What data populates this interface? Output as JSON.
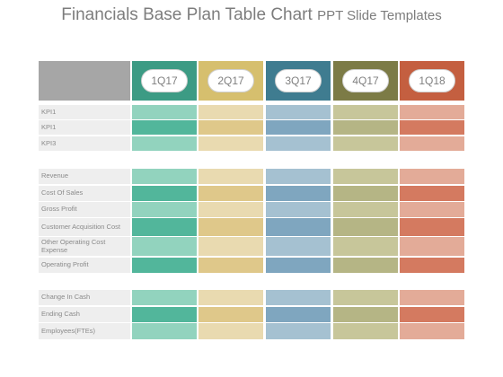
{
  "title": {
    "main": "Financials Base Plan Table Chart",
    "sub": "PPT Slide Templates"
  },
  "columns": [
    {
      "label": "1Q17",
      "header": "#3c9b84",
      "dark": "#52b69b",
      "light": "#92d3be"
    },
    {
      "label": "2Q17",
      "header": "#d6bf6e",
      "dark": "#dfc88a",
      "light": "#e9dab0"
    },
    {
      "label": "3Q17",
      "header": "#3f7c90",
      "dark": "#7fa6bf",
      "light": "#a5c1d1"
    },
    {
      "label": "4Q17",
      "header": "#7c7b46",
      "dark": "#b5b585",
      "light": "#c7c69a"
    },
    {
      "label": "1Q18",
      "header": "#c45f40",
      "dark": "#d47a60",
      "light": "#e3ab98"
    }
  ],
  "groups": [
    {
      "rows": [
        "KPI1",
        "KPI1",
        "KPI3"
      ]
    },
    {
      "rows": [
        "Revenue",
        "Cost Of Sales",
        "Gross Profit",
        "Customer Acquisition Cost",
        "Other Operating Cost Expense",
        "Operating Profit"
      ]
    },
    {
      "rows": [
        "Change In Cash",
        "Ending Cash",
        "Employees(FTEs)"
      ]
    }
  ]
}
